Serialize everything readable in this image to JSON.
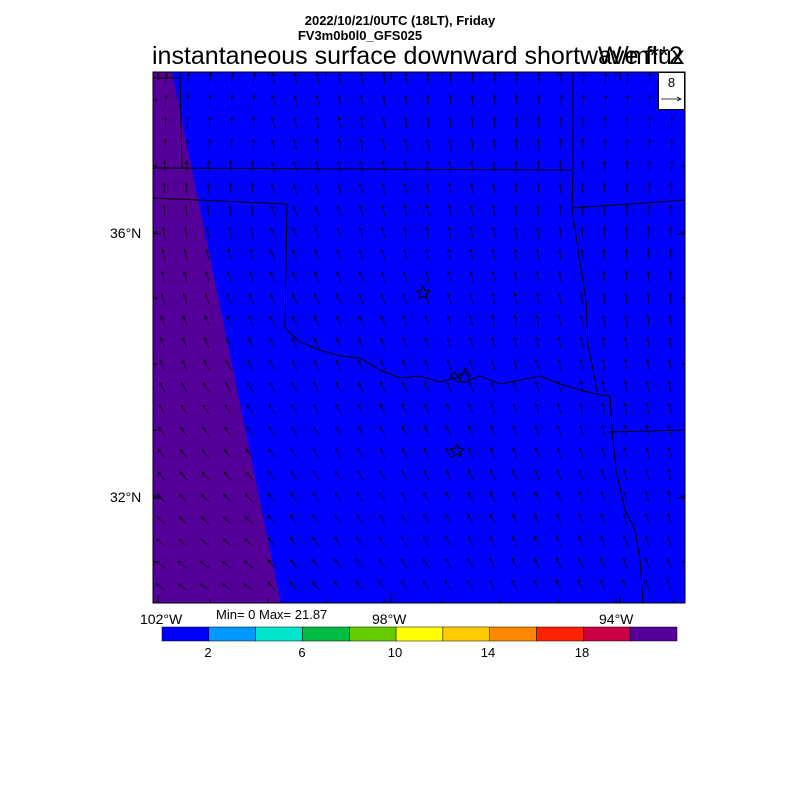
{
  "header": {
    "line1": "2022/10/21/0UTC (18LT), Friday",
    "line2": "FV3m0b0l0_GFS025",
    "title": "instantaneous surface downward shortwave flux",
    "units": "W/m**2"
  },
  "axes": {
    "lat_labels": [
      "36°N",
      "32°N"
    ],
    "lon_labels": [
      "102°W",
      "98°W",
      "94°W"
    ]
  },
  "stats": {
    "text": "Min= 0 Max= 21.87"
  },
  "colorbar": {
    "colors": [
      "#0000ff",
      "#0099ff",
      "#00e5cc",
      "#00bb44",
      "#66cc00",
      "#ffff00",
      "#ffcc00",
      "#ff8800",
      "#ff2200",
      "#cc0044",
      "#550099"
    ],
    "tick_labels": [
      "2",
      "6",
      "10",
      "14",
      "18"
    ]
  },
  "wind_reference": {
    "value": "8"
  },
  "chart_data": {
    "type": "heatmap",
    "field": "instantaneous surface downward shortwave flux",
    "units": "W/m**2",
    "min": 0,
    "max": 21.87,
    "contour_levels": [
      0,
      2,
      4,
      6,
      8,
      10,
      12,
      14,
      16,
      18,
      20
    ],
    "lon_range": [
      -102,
      -93
    ],
    "lat_range": [
      30.5,
      38.5
    ],
    "notes": "Field ~0 (blue) everywhere except a narrow band along the western edge increasing toward the south-west corner (up to ~21.87)."
  }
}
